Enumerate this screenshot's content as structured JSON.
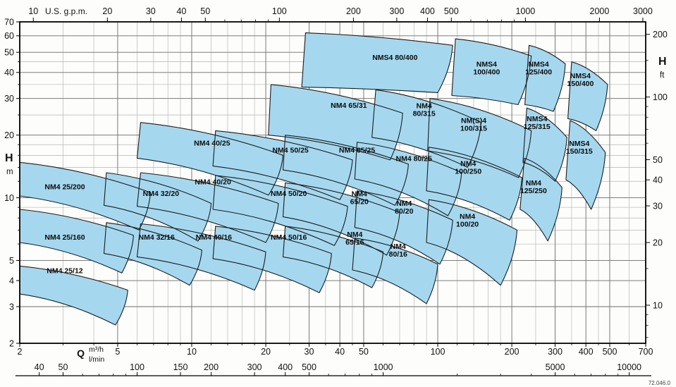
{
  "meta": {
    "code": "72.046.0"
  },
  "chart_data": {
    "type": "area",
    "title": "",
    "scale": "log-log",
    "x_axis_label": "Q (m³/h, l/min, U.S. g.p.m.)",
    "y_axis_label": "H (m, ft)",
    "legend_position": "none",
    "grid": true,
    "axes": {
      "q_m3h": {
        "min": 2,
        "max": 700,
        "labeled": [
          2,
          5,
          10,
          20,
          30,
          40,
          50,
          100,
          200,
          300,
          400,
          500,
          700
        ],
        "minor": [
          3,
          4,
          6,
          7,
          8,
          9,
          12,
          14,
          16,
          18,
          25,
          35,
          45,
          60,
          70,
          80,
          90,
          120,
          140,
          160,
          180,
          250,
          350,
          450,
          600
        ]
      },
      "h_m": {
        "min": 2,
        "max": 70,
        "labeled": [
          2,
          3,
          4,
          5,
          10,
          20,
          30,
          40,
          50,
          60,
          70
        ],
        "minor": [
          6,
          7,
          8,
          9,
          12,
          14,
          16,
          18,
          25,
          35,
          45
        ]
      },
      "us_gpm": {
        "per_m3h": 4.4029,
        "labeled": [
          10,
          20,
          30,
          40,
          50,
          100,
          200,
          300,
          400,
          500,
          1000,
          2000,
          3000
        ],
        "minor": [
          60,
          70,
          80,
          90,
          600,
          700,
          800,
          900
        ]
      },
      "l_min": {
        "per_m3h": 16.6667,
        "labeled": [
          40,
          50,
          100,
          150,
          200,
          300,
          400,
          500,
          1000,
          5000,
          10000
        ],
        "minor": [
          60,
          70,
          80,
          90,
          600,
          700,
          800,
          900,
          2000,
          3000,
          4000,
          6000,
          7000,
          8000,
          9000
        ]
      },
      "ft": {
        "per_m": 3.2808,
        "labeled": [
          10,
          20,
          30,
          40,
          50,
          100,
          200
        ],
        "minor": [
          7,
          8,
          9,
          15,
          60,
          70,
          80,
          90,
          150
        ]
      }
    },
    "units": {
      "flow": "Q",
      "m3h": "m³/h",
      "lmin": "l/min",
      "gpm": "U.S. g.p.m.",
      "head": "H",
      "m": "m",
      "ft": "ft"
    },
    "colors": {
      "region_fill": "#a5d8ef",
      "region_stroke": "#1c1c1c",
      "grid_minor": "#a6a6a6",
      "grid_major": "#6b6b6b",
      "axis": "#111111",
      "text": "#111111"
    },
    "pumps": [
      {
        "label": "NM4 25/200",
        "label_at": [
          3.05,
          11.0
        ],
        "tl": [
          2,
          14.8
        ],
        "tr": [
          6.8,
          10.6
        ],
        "br": [
          6.1,
          7.0
        ],
        "bl": [
          2,
          10.2
        ]
      },
      {
        "label": "NM4 25/160",
        "label_at": [
          3.05,
          6.3
        ],
        "tl": [
          2,
          8.8
        ],
        "tr": [
          5.8,
          6.6
        ],
        "br": [
          5.2,
          4.35
        ],
        "bl": [
          2,
          6.1
        ]
      },
      {
        "label": "NM4 25/12",
        "label_at": [
          3.05,
          4.35
        ],
        "tl": [
          2,
          4.7
        ],
        "tr": [
          5.5,
          3.6
        ],
        "br": [
          4.9,
          2.45
        ],
        "bl": [
          2,
          3.45
        ]
      },
      {
        "label": "NM4 32/20",
        "label_at": [
          7.5,
          10.2
        ],
        "tl": [
          4.5,
          13.2
        ],
        "tr": [
          12,
          9.4
        ],
        "br": [
          10.6,
          6.2
        ],
        "bl": [
          4.4,
          9.2
        ]
      },
      {
        "label": "NM4 32/16",
        "label_at": [
          7.2,
          6.3
        ],
        "tl": [
          4.5,
          7.6
        ],
        "tr": [
          11,
          5.6
        ],
        "br": [
          9.8,
          3.8
        ],
        "bl": [
          4.4,
          5.4
        ]
      },
      {
        "label": "NM4 40/25",
        "label_at": [
          12.1,
          17.8
        ],
        "tl": [
          6.2,
          23
        ],
        "tr": [
          23.5,
          16
        ],
        "br": [
          20.5,
          10.3
        ],
        "bl": [
          6.0,
          15.5
        ]
      },
      {
        "label": "NM4 40/20",
        "label_at": [
          12.2,
          11.6
        ],
        "tl": [
          6.2,
          13.2
        ],
        "tr": [
          22.5,
          9.4
        ],
        "br": [
          20,
          6.1
        ],
        "bl": [
          6.0,
          9.1
        ]
      },
      {
        "label": "NM4 40/16",
        "label_at": [
          12.3,
          6.3
        ],
        "tl": [
          6.2,
          7.5
        ],
        "tr": [
          20,
          5.5
        ],
        "br": [
          18,
          3.6
        ],
        "bl": [
          6.0,
          5.2
        ]
      },
      {
        "label": "NM4 50/25",
        "label_at": [
          25.2,
          16.5
        ],
        "tl": [
          12.5,
          21
        ],
        "tr": [
          45,
          15.2
        ],
        "br": [
          40,
          9.8
        ],
        "bl": [
          12.2,
          14.2
        ]
      },
      {
        "label": "NM4 50/20",
        "label_at": [
          24.8,
          10.2
        ],
        "tl": [
          12.5,
          12.8
        ],
        "tr": [
          43,
          9.1
        ],
        "br": [
          38,
          5.9
        ],
        "bl": [
          12.2,
          8.8
        ]
      },
      {
        "label": "NM4 50/16",
        "label_at": [
          24.8,
          6.3
        ],
        "tl": [
          12.5,
          7.3
        ],
        "tr": [
          37,
          5.4
        ],
        "br": [
          33,
          3.5
        ],
        "bl": [
          12.2,
          5.1
        ]
      },
      {
        "label": "NM4 65/31",
        "label_at": [
          43.5,
          27
        ],
        "tl": [
          21,
          35
        ],
        "tr": [
          72,
          25.5
        ],
        "br": [
          64,
          15.2
        ],
        "bl": [
          20.5,
          20
        ]
      },
      {
        "label": "NM4 65/25",
        "label_at": [
          47,
          16.5
        ],
        "tl": [
          24,
          20
        ],
        "tr": [
          76,
          14.5
        ],
        "br": [
          67,
          9.2
        ],
        "bl": [
          23.5,
          13.6
        ]
      },
      {
        "label": "NM4\n65/20",
        "label_at": [
          48,
          10.0
        ],
        "tl": [
          24,
          11.8
        ],
        "tr": [
          70,
          8.5
        ],
        "br": [
          62,
          5.3
        ],
        "bl": [
          23.5,
          8.1
        ]
      },
      {
        "label": "NM4\n65/16",
        "label_at": [
          46,
          6.4
        ],
        "tl": [
          24,
          7.3
        ],
        "tr": [
          60,
          5.5
        ],
        "br": [
          54,
          3.7
        ],
        "bl": [
          23.5,
          5.2
        ]
      },
      {
        "label": "NMS4 80/400",
        "label_at": [
          67,
          46
        ],
        "tl": [
          29,
          62
        ],
        "tr": [
          115,
          54
        ],
        "br": [
          100,
          32
        ],
        "bl": [
          28,
          34
        ]
      },
      {
        "label": "NM4\n80/315",
        "label_at": [
          88,
          26.5
        ],
        "tl": [
          56,
          33
        ],
        "tr": [
          150,
          23
        ],
        "br": [
          132,
          14
        ],
        "bl": [
          54,
          19.5
        ]
      },
      {
        "label": "NM4 80/25",
        "label_at": [
          80,
          15
        ],
        "tl": [
          47,
          18.5
        ],
        "tr": [
          125,
          13.2
        ],
        "br": [
          110,
          8.2
        ],
        "bl": [
          46,
          12.3
        ]
      },
      {
        "label": "NM4\n80/20",
        "label_at": [
          73,
          9.0
        ],
        "tl": [
          47,
          10.8
        ],
        "tr": [
          115,
          7.8
        ],
        "br": [
          102,
          4.8
        ],
        "bl": [
          46,
          7.2
        ]
      },
      {
        "label": "NM4\n80/16",
        "label_at": [
          69,
          5.6
        ],
        "tl": [
          46,
          6.4
        ],
        "tr": [
          100,
          4.8
        ],
        "br": [
          90,
          3.1
        ],
        "bl": [
          45,
          4.5
        ]
      },
      {
        "label": "NMS4\n100/400",
        "label_at": [
          158,
          42
        ],
        "tl": [
          118,
          58
        ],
        "tr": [
          240,
          48
        ],
        "br": [
          212,
          28
        ],
        "bl": [
          114,
          31
        ]
      },
      {
        "label": "NM(S)4\n100/315",
        "label_at": [
          140,
          22.5
        ],
        "tl": [
          93,
          30
        ],
        "tr": [
          240,
          21
        ],
        "br": [
          213,
          12.5
        ],
        "bl": [
          91,
          16.8
        ]
      },
      {
        "label": "NM4\n100/250",
        "label_at": [
          133,
          14
        ],
        "tl": [
          92,
          17.5
        ],
        "tr": [
          220,
          12.5
        ],
        "br": [
          196,
          7.8
        ],
        "bl": [
          90,
          10.8
        ]
      },
      {
        "label": "NM4\n100/20",
        "label_at": [
          132,
          7.8
        ],
        "tl": [
          92,
          9.8
        ],
        "tr": [
          210,
          7.0
        ],
        "br": [
          180,
          3.8
        ],
        "bl": [
          90,
          6.1
        ]
      },
      {
        "label": "NMS4\n125/400",
        "label_at": [
          257,
          42
        ],
        "tl": [
          235,
          54
        ],
        "tr": [
          330,
          44
        ],
        "br": [
          295,
          26
        ],
        "bl": [
          226,
          28
        ]
      },
      {
        "label": "NMS4\n125/315",
        "label_at": [
          253,
          23
        ],
        "tl": [
          230,
          27
        ],
        "tr": [
          335,
          19.5
        ],
        "br": [
          300,
          12
        ],
        "bl": [
          222,
          14.8
        ]
      },
      {
        "label": "NM4\n125/250",
        "label_at": [
          245,
          11.3
        ],
        "tl": [
          225,
          15.5
        ],
        "tr": [
          320,
          11.2
        ],
        "br": [
          280,
          6.2
        ],
        "bl": [
          216,
          8.8
        ]
      },
      {
        "label": "NMS4\n150/400",
        "label_at": [
          380,
          37
        ],
        "tl": [
          350,
          45
        ],
        "tr": [
          490,
          35
        ],
        "br": [
          440,
          21
        ],
        "bl": [
          338,
          24
        ]
      },
      {
        "label": "NMS4\n150/315",
        "label_at": [
          376,
          17.5
        ],
        "tl": [
          345,
          23.5
        ],
        "tr": [
          480,
          16.5
        ],
        "br": [
          420,
          8.8
        ],
        "bl": [
          332,
          12.2
        ]
      }
    ]
  }
}
